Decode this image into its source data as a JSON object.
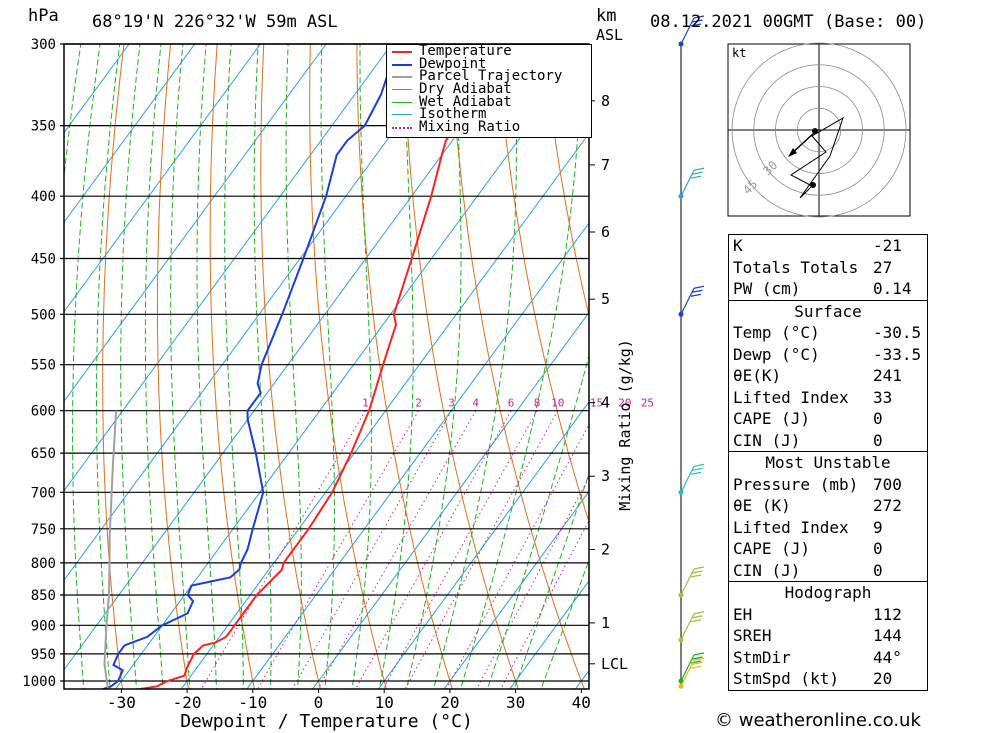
{
  "header": {
    "p_unit": "hPa",
    "location": "68°19'N  226°32'W  59m  ASL",
    "km_unit": "km",
    "asl": "ASL",
    "datetime": "08.12.2021  00GMT  (Base: 00)"
  },
  "legend": [
    {
      "label": "Temperature",
      "color": "#ff2020"
    },
    {
      "label": "Dewpoint",
      "color": "#1a3fd8"
    },
    {
      "label": "Parcel Trajectory",
      "color": "#a0a0a0"
    },
    {
      "label": "Dry Adiabat",
      "color": "#e0701a"
    },
    {
      "label": "Wet Adiabat",
      "color": "#1fb21f"
    },
    {
      "label": "Isotherm",
      "color": "#2aa0e0"
    },
    {
      "label": "Mixing Ratio",
      "color": "#d0209a"
    }
  ],
  "chart_data": {
    "type": "line",
    "title": "68°19'N 226°32'W 59m ASL",
    "xlabel": "Dewpoint / Temperature (°C)",
    "ylabel": "hPa",
    "right_label": "Mixing Ratio (g/kg)",
    "lcl_label": "LCL",
    "x_ticks": [
      "-30",
      "-20",
      "-10",
      "0",
      "10",
      "20",
      "30",
      "40"
    ],
    "x_tick_values": [
      -30,
      -20,
      -10,
      0,
      10,
      20,
      30,
      40
    ],
    "pressure_levels": [
      300,
      350,
      400,
      450,
      500,
      550,
      600,
      650,
      700,
      750,
      800,
      850,
      900,
      950,
      1000
    ],
    "pressure_labels": [
      "300",
      "350",
      "400",
      "450",
      "500",
      "550",
      "600",
      "650",
      "700",
      "750",
      "800",
      "850",
      "900",
      "950",
      "1000"
    ],
    "km_ticks": [
      {
        "label": "8",
        "p": 334
      },
      {
        "label": "7",
        "p": 377
      },
      {
        "label": "6",
        "p": 428
      },
      {
        "label": "5",
        "p": 486
      },
      {
        "label": "4",
        "p": 591
      },
      {
        "label": "3",
        "p": 679
      },
      {
        "label": "2",
        "p": 780
      },
      {
        "label": "1",
        "p": 896
      },
      {
        "label": "LCL",
        "p": 968
      }
    ],
    "mixing_ratio_labels": [
      "1",
      "2",
      "3",
      "4",
      "6",
      "8",
      "10",
      "15",
      "20",
      "25"
    ],
    "mixing_ratio_values": [
      1,
      2,
      3,
      4,
      6,
      8,
      10,
      15,
      20,
      25
    ],
    "series": [
      {
        "name": "Temperature",
        "points": [
          [
            1025,
            -30.5
          ],
          [
            1010,
            -24
          ],
          [
            1000,
            -23
          ],
          [
            990,
            -21
          ],
          [
            975,
            -21.5
          ],
          [
            950,
            -22
          ],
          [
            935,
            -21.5
          ],
          [
            930,
            -20
          ],
          [
            920,
            -19
          ],
          [
            900,
            -19
          ],
          [
            880,
            -19
          ],
          [
            850,
            -19
          ],
          [
            830,
            -18.5
          ],
          [
            810,
            -18
          ],
          [
            800,
            -18.5
          ],
          [
            750,
            -18.5
          ],
          [
            700,
            -19
          ],
          [
            650,
            -20.5
          ],
          [
            600,
            -22.5
          ],
          [
            550,
            -25.5
          ],
          [
            510,
            -28
          ],
          [
            500,
            -29.5
          ],
          [
            450,
            -33
          ],
          [
            400,
            -37
          ],
          [
            370,
            -40
          ],
          [
            360,
            -41
          ],
          [
            350,
            -41
          ],
          [
            335,
            -42
          ],
          [
            330,
            -41.5
          ],
          [
            320,
            -43
          ],
          [
            300,
            -44.5
          ]
        ]
      },
      {
        "name": "Dewpoint",
        "points": [
          [
            1025,
            -33.5
          ],
          [
            1010,
            -31
          ],
          [
            1000,
            -30.5
          ],
          [
            980,
            -31
          ],
          [
            970,
            -33
          ],
          [
            950,
            -33.5
          ],
          [
            935,
            -33.5
          ],
          [
            920,
            -31
          ],
          [
            900,
            -30
          ],
          [
            880,
            -27.5
          ],
          [
            860,
            -28
          ],
          [
            850,
            -29.5
          ],
          [
            835,
            -30
          ],
          [
            822,
            -25
          ],
          [
            810,
            -24.5
          ],
          [
            800,
            -25
          ],
          [
            780,
            -25.5
          ],
          [
            750,
            -27
          ],
          [
            700,
            -29.5
          ],
          [
            650,
            -35
          ],
          [
            610,
            -40
          ],
          [
            600,
            -41
          ],
          [
            580,
            -41
          ],
          [
            570,
            -42.5
          ],
          [
            550,
            -44
          ],
          [
            500,
            -46.5
          ],
          [
            450,
            -49.5
          ],
          [
            400,
            -53
          ],
          [
            370,
            -56
          ],
          [
            360,
            -56
          ],
          [
            350,
            -55
          ],
          [
            330,
            -56
          ],
          [
            320,
            -57
          ],
          [
            300,
            -58
          ]
        ]
      },
      {
        "name": "Parcel Trajectory",
        "points": [
          [
            1025,
            -30.5
          ],
          [
            968,
            -34.5
          ],
          [
            900,
            -38.5
          ],
          [
            850,
            -41.5
          ],
          [
            800,
            -45
          ],
          [
            760,
            -48
          ],
          [
            720,
            -51
          ],
          [
            670,
            -55
          ],
          [
            600,
            -61
          ]
        ]
      }
    ]
  },
  "wind_profile": {
    "barbs": [
      {
        "p": 300,
        "color": "#1a3fd8"
      },
      {
        "p": 400,
        "color": "#2aa0e0"
      },
      {
        "p": 500,
        "color": "#1a3fd8"
      },
      {
        "p": 700,
        "color": "#20c0c0"
      },
      {
        "p": 850,
        "color": "#a0c040"
      },
      {
        "p": 925,
        "color": "#a0c040"
      },
      {
        "p": 1000,
        "color": "#20b020"
      },
      {
        "p": 1010,
        "color": "#e0c020"
      }
    ]
  },
  "hodograph": {
    "unit": "kt",
    "ring_labels": [
      "30",
      "45"
    ]
  },
  "stats": {
    "indices": [
      {
        "label": "K",
        "value": "-21"
      },
      {
        "label": "Totals Totals",
        "value": "27"
      },
      {
        "label": "PW (cm)",
        "value": "0.14"
      }
    ],
    "surface_title": "Surface",
    "surface": [
      {
        "label": "Temp (°C)",
        "value": "-30.5"
      },
      {
        "label": "Dewp (°C)",
        "value": "-33.5"
      },
      {
        "label": "θE(K)",
        "value": "241"
      },
      {
        "label": "Lifted Index",
        "value": "33"
      },
      {
        "label": "CAPE (J)",
        "value": "0"
      },
      {
        "label": "CIN (J)",
        "value": "0"
      }
    ],
    "unstable_title": "Most Unstable",
    "unstable": [
      {
        "label": "Pressure (mb)",
        "value": "700"
      },
      {
        "label": "θE (K)",
        "value": "272"
      },
      {
        "label": "Lifted Index",
        "value": "9"
      },
      {
        "label": "CAPE (J)",
        "value": "0"
      },
      {
        "label": "CIN (J)",
        "value": "0"
      }
    ],
    "hodo_title": "Hodograph",
    "hodo": [
      {
        "label": "EH",
        "value": "112"
      },
      {
        "label": "SREH",
        "value": "144"
      },
      {
        "label": "StmDir",
        "value": "44°"
      },
      {
        "label": "StmSpd (kt)",
        "value": "20"
      }
    ]
  },
  "copyright": "© weatheronline.co.uk"
}
